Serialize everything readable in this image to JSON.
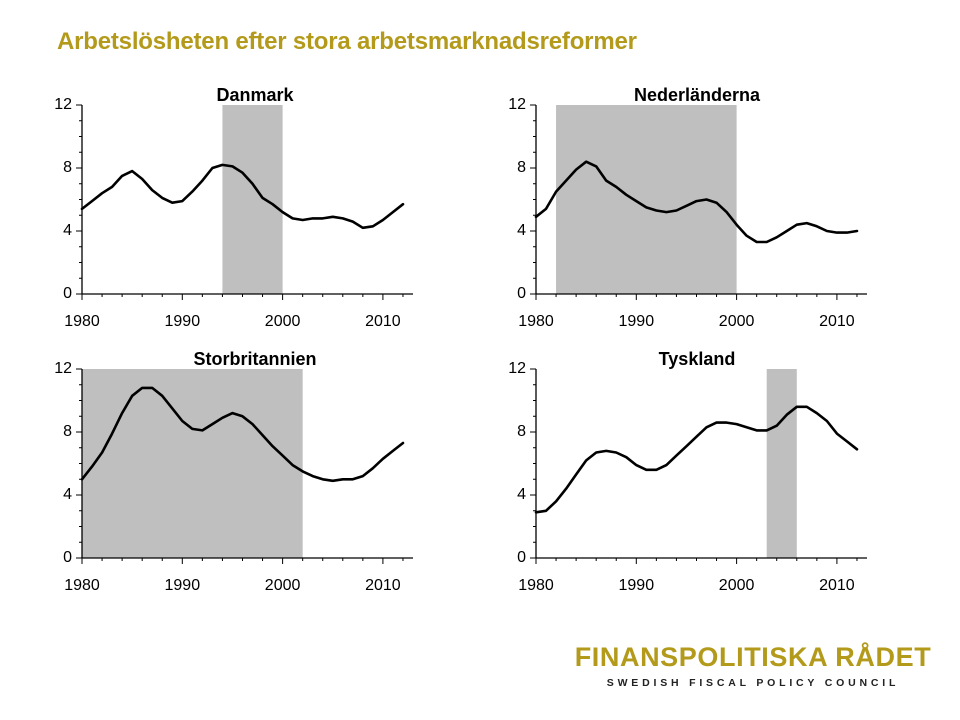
{
  "page": {
    "title": "Arbetslösheten efter stora arbetsmarknadsreformer"
  },
  "logo": {
    "name": "FINANSPOLITISKA RÅDET",
    "subtitle": "SWEDISH FISCAL POLICY COUNCIL"
  },
  "colors": {
    "title": "#b39a1b",
    "shade": "#bfbfbf",
    "line": "#000000"
  },
  "chart_data": [
    {
      "type": "line",
      "title": "Danmark",
      "xlim": [
        1980,
        2013
      ],
      "ylim": [
        0,
        12
      ],
      "yticks": [
        0,
        4,
        8,
        12
      ],
      "xticks": [
        1980,
        1990,
        2000,
        2010
      ],
      "reform_period": [
        1994,
        2000
      ],
      "x": [
        1980,
        1981,
        1982,
        1983,
        1984,
        1985,
        1986,
        1987,
        1988,
        1989,
        1990,
        1991,
        1992,
        1993,
        1994,
        1995,
        1996,
        1997,
        1998,
        1999,
        2000,
        2001,
        2002,
        2003,
        2004,
        2005,
        2006,
        2007,
        2008,
        2009,
        2010,
        2011,
        2012
      ],
      "y": [
        5.4,
        5.9,
        6.4,
        6.8,
        7.5,
        7.8,
        7.3,
        6.6,
        6.1,
        5.8,
        5.9,
        6.5,
        7.2,
        8.0,
        8.2,
        8.1,
        7.7,
        7.0,
        6.1,
        5.7,
        5.2,
        4.8,
        4.7,
        4.8,
        4.8,
        4.9,
        4.8,
        4.6,
        4.2,
        4.3,
        4.7,
        5.2,
        5.7
      ]
    },
    {
      "type": "line",
      "title": "Nederländerna",
      "xlim": [
        1980,
        2013
      ],
      "ylim": [
        0,
        12
      ],
      "yticks": [
        0,
        4,
        8,
        12
      ],
      "xticks": [
        1980,
        1990,
        2000,
        2010
      ],
      "reform_period": [
        1982,
        2000
      ],
      "x": [
        1980,
        1981,
        1982,
        1983,
        1984,
        1985,
        1986,
        1987,
        1988,
        1989,
        1990,
        1991,
        1992,
        1993,
        1994,
        1995,
        1996,
        1997,
        1998,
        1999,
        2000,
        2001,
        2002,
        2003,
        2004,
        2005,
        2006,
        2007,
        2008,
        2009,
        2010,
        2011,
        2012
      ],
      "y": [
        4.9,
        5.4,
        6.5,
        7.2,
        7.9,
        8.4,
        8.1,
        7.2,
        6.8,
        6.3,
        5.9,
        5.5,
        5.3,
        5.2,
        5.3,
        5.6,
        5.9,
        6.0,
        5.8,
        5.2,
        4.4,
        3.7,
        3.3,
        3.3,
        3.6,
        4.0,
        4.4,
        4.5,
        4.3,
        4.0,
        3.9,
        3.9,
        4.0
      ]
    },
    {
      "type": "line",
      "title": "Storbritannien",
      "xlim": [
        1980,
        2013
      ],
      "ylim": [
        0,
        12
      ],
      "yticks": [
        0,
        4,
        8,
        12
      ],
      "xticks": [
        1980,
        1990,
        2000,
        2010
      ],
      "reform_period": [
        1980,
        2002
      ],
      "x": [
        1980,
        1981,
        1982,
        1983,
        1984,
        1985,
        1986,
        1987,
        1988,
        1989,
        1990,
        1991,
        1992,
        1993,
        1994,
        1995,
        1996,
        1997,
        1998,
        1999,
        2000,
        2001,
        2002,
        2003,
        2004,
        2005,
        2006,
        2007,
        2008,
        2009,
        2010,
        2011,
        2012
      ],
      "y": [
        5.0,
        5.8,
        6.7,
        7.9,
        9.2,
        10.3,
        10.8,
        10.8,
        10.3,
        9.5,
        8.7,
        8.2,
        8.1,
        8.5,
        8.9,
        9.2,
        9.0,
        8.5,
        7.8,
        7.1,
        6.5,
        5.9,
        5.5,
        5.2,
        5.0,
        4.9,
        5.0,
        5.0,
        5.2,
        5.7,
        6.3,
        6.8,
        7.3
      ]
    },
    {
      "type": "line",
      "title": "Tyskland",
      "xlim": [
        1980,
        2013
      ],
      "ylim": [
        0,
        12
      ],
      "yticks": [
        0,
        4,
        8,
        12
      ],
      "xticks": [
        1980,
        1990,
        2000,
        2010
      ],
      "reform_period": [
        2003,
        2006
      ],
      "x": [
        1980,
        1981,
        1982,
        1983,
        1984,
        1985,
        1986,
        1987,
        1988,
        1989,
        1990,
        1991,
        1992,
        1993,
        1994,
        1995,
        1996,
        1997,
        1998,
        1999,
        2000,
        2001,
        2002,
        2003,
        2004,
        2005,
        2006,
        2007,
        2008,
        2009,
        2010,
        2011,
        2012
      ],
      "y": [
        2.9,
        3.0,
        3.6,
        4.4,
        5.3,
        6.2,
        6.7,
        6.8,
        6.7,
        6.4,
        5.9,
        5.6,
        5.6,
        5.9,
        6.5,
        7.1,
        7.7,
        8.3,
        8.6,
        8.6,
        8.5,
        8.3,
        8.1,
        8.1,
        8.4,
        9.1,
        9.6,
        9.6,
        9.2,
        8.7,
        7.9,
        7.4,
        6.9
      ]
    }
  ]
}
